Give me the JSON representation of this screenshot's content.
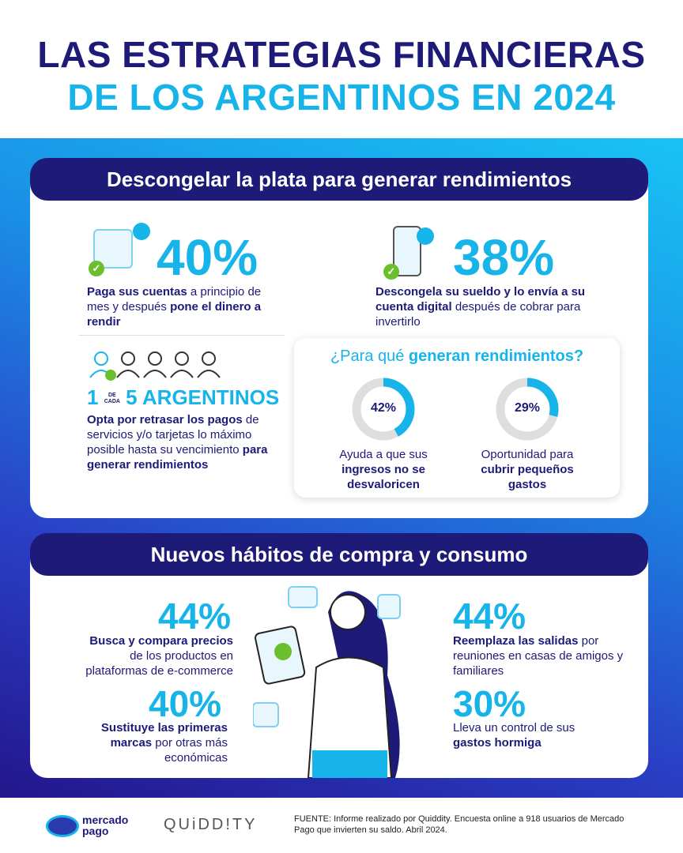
{
  "title": {
    "line1": "LAS ESTRATEGIAS FINANCIERAS",
    "line2": "DE LOS ARGENTINOS EN 2024"
  },
  "section1": {
    "heading": "Descongelar la plata para generar rendimientos",
    "stat1": {
      "value": "40%",
      "bold1": "Paga sus cuentas",
      "text1": " a principio de mes y después ",
      "bold2": "pone el dinero a rendir"
    },
    "stat2": {
      "value": "38%",
      "bold1": "Descongela su sueldo y lo envía a su cuenta digital",
      "text1": " después de cobrar para invertirlo"
    },
    "stat3": {
      "num1": "1",
      "de": "DE",
      "cada": "CADA",
      "num2": "5 ARGENTINOS",
      "bold1": "Opta por retrasar los pagos",
      "text1": " de servicios y/o tarjetas lo máximo posible hasta su vencimiento ",
      "bold2": "para generar rendimientos"
    },
    "box": {
      "title_plain": "¿Para qué ",
      "title_bold": "generan rendimientos?",
      "donuts": [
        {
          "value": 42,
          "label": "42%",
          "text1": "Ayuda a que sus ",
          "bold1": "ingresos no se desvaloricen"
        },
        {
          "value": 29,
          "label": "29%",
          "text1": "Oportunidad para ",
          "bold1": "cubrir pequeños gastos"
        }
      ]
    }
  },
  "section2": {
    "heading": "Nuevos hábitos de compra y consumo",
    "items": [
      {
        "value": "44%",
        "bold1": "Busca y compara precios",
        "text1": " de los productos en plataformas de e-commerce"
      },
      {
        "value": "40%",
        "bold1": "Sustituye las primeras marcas",
        "text1": " por otras más económicas"
      },
      {
        "value": "44%",
        "bold1": "Reemplaza las salidas",
        "text1": " por reuniones en casas de amigos y familiares"
      },
      {
        "value": "30%",
        "text1": "Lleva un control de sus ",
        "bold1": "gastos hormiga"
      }
    ]
  },
  "footer": {
    "logo1_line1": "mercado",
    "logo1_line2": "pago",
    "logo2": "QUiDD!TY",
    "source": "FUENTE: Informe realizado por Quiddity. Encuesta online a 918 usuarios de Mercado Pago que invierten su saldo. Abril 2024."
  },
  "colors": {
    "navy": "#1d1a78",
    "cyan": "#17b4ea",
    "track": "#dedede",
    "check": "#6cbf2c"
  }
}
